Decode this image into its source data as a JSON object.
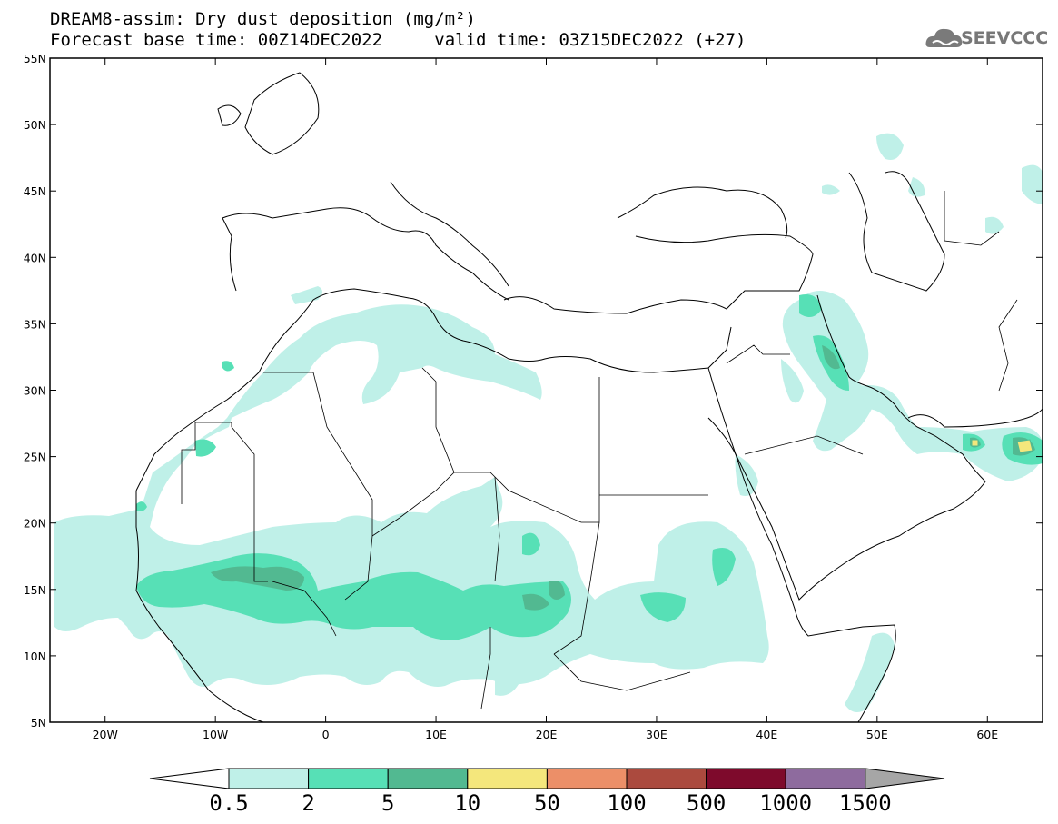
{
  "header": {
    "title_line1": "DREAM8-assim: Dry dust deposition (mg/m²)",
    "forecast_base": "Forecast base time: 00Z14DEC2022",
    "valid_time": "valid time: 03Z15DEC2022 (+27)"
  },
  "logo": {
    "text": "SEEVCCC",
    "icon": "cloud-icon"
  },
  "map": {
    "lat_labels": [
      "55N",
      "50N",
      "45N",
      "40N",
      "35N",
      "30N",
      "25N",
      "20N",
      "15N",
      "10N",
      "5N"
    ],
    "lon_labels": [
      "20W",
      "10W",
      "0",
      "10E",
      "20E",
      "30E",
      "40E",
      "50E",
      "60E"
    ],
    "lat_range": [
      5,
      55
    ],
    "lon_range": [
      -25,
      65
    ]
  },
  "colorbar": {
    "labels": [
      "0.5",
      "2",
      "5",
      "10",
      "50",
      "100",
      "500",
      "1000",
      "1500"
    ],
    "colors": [
      "#bff0e8",
      "#57e0b6",
      "#52b991",
      "#f4e77c",
      "#ec8f68",
      "#ab4a3e",
      "#7e0a2c",
      "#8e6b9e"
    ],
    "under_color": "#ffffff",
    "over_color": "#a6a6a6"
  },
  "palette": {
    "light": "#bff0e8",
    "mid": "#57e0b6",
    "dark": "#52b991",
    "yellow": "#f4e77c"
  }
}
